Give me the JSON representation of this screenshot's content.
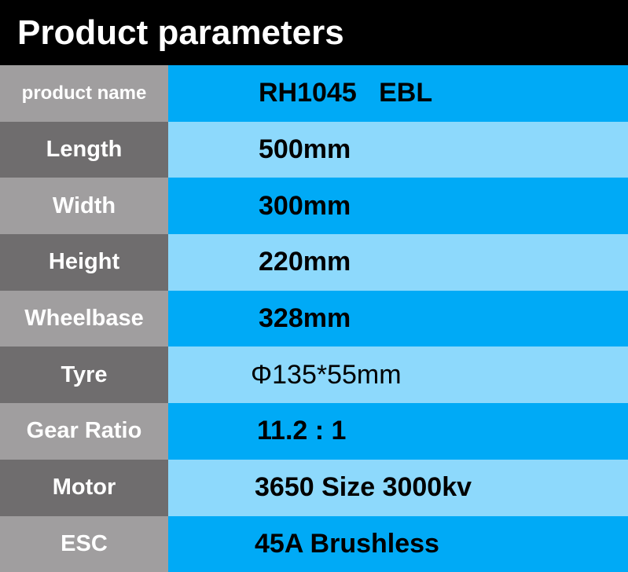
{
  "title": "Product parameters",
  "rows": [
    {
      "label": "product name",
      "value": "RH1045   EBL"
    },
    {
      "label": "Length",
      "value": "500mm"
    },
    {
      "label": "Width",
      "value": "300mm"
    },
    {
      "label": "Height",
      "value": "220mm"
    },
    {
      "label": "Wheelbase",
      "value": "328mm"
    },
    {
      "label": "Tyre",
      "value": "Φ135*55mm"
    },
    {
      "label": "Gear Ratio",
      "value": "11.2 : 1"
    },
    {
      "label": "Motor",
      "value": "3650 Size 3000kv"
    },
    {
      "label": "ESC",
      "value": "45A Brushless"
    }
  ],
  "colors": {
    "header": "#000000",
    "label_light": "#a09e9f",
    "label_dark": "#6f6d6e",
    "value_blue": "#00aaf6",
    "value_light_blue": "#8dd9fc"
  }
}
